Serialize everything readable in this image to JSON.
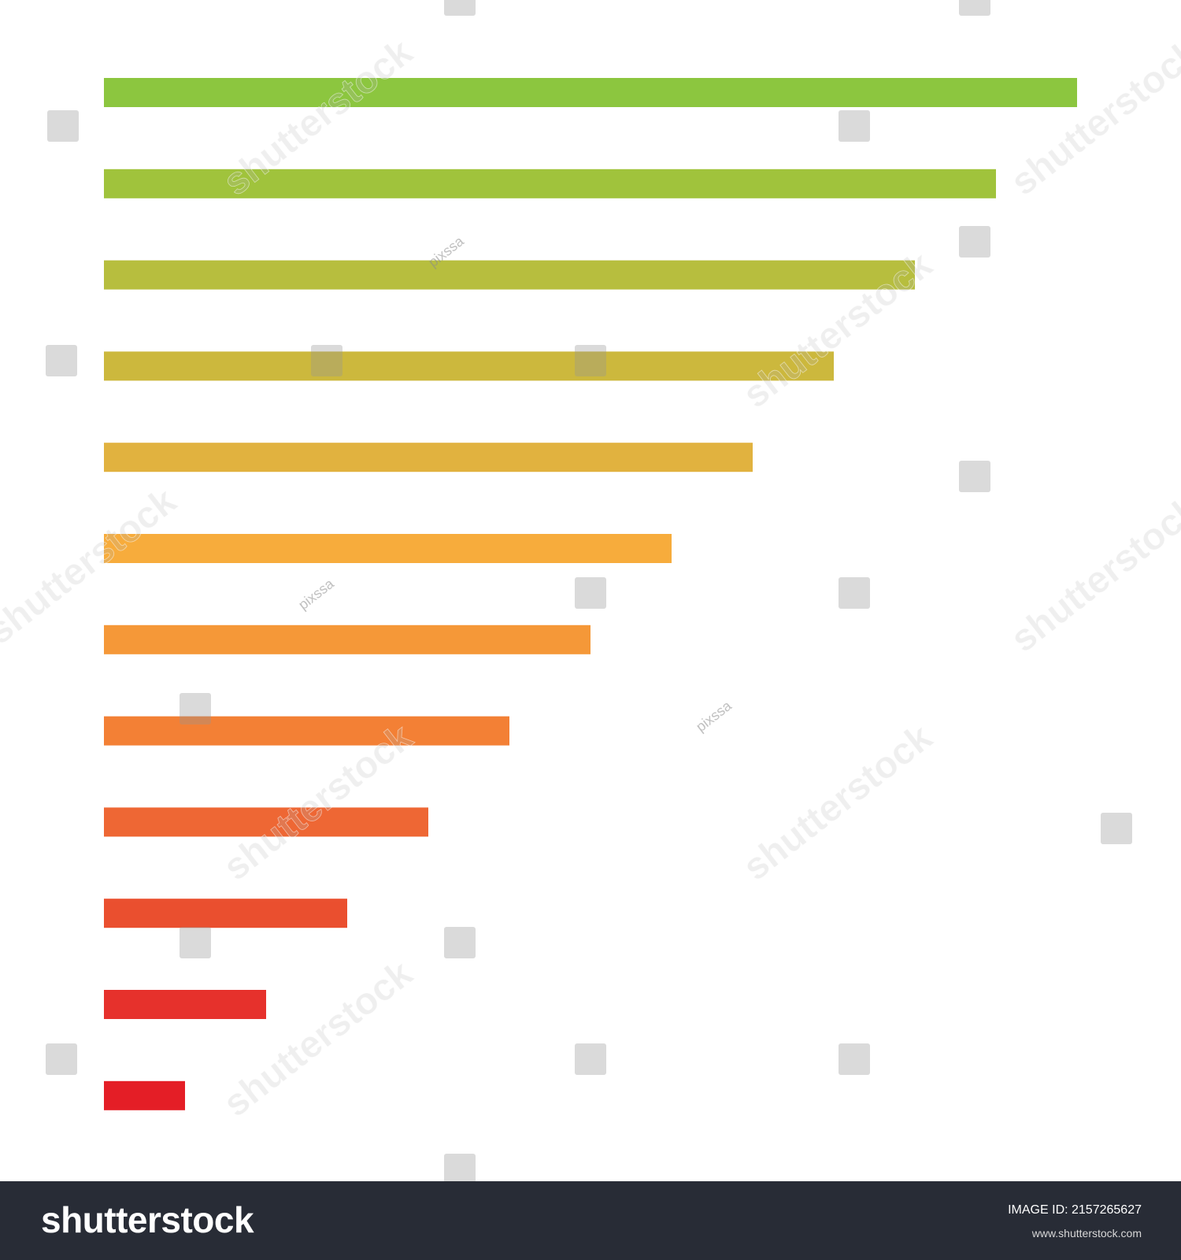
{
  "chart_data": {
    "type": "bar",
    "orientation": "horizontal",
    "categories": [
      "",
      "",
      "",
      "",
      "",
      "",
      "",
      "",
      "",
      "",
      "",
      ""
    ],
    "values": [
      12,
      11,
      10,
      9,
      8,
      7,
      6,
      5,
      4,
      3,
      2,
      1
    ],
    "colors": [
      "#8cc63f",
      "#a0c33c",
      "#b7be3e",
      "#ccb83d",
      "#e1b23f",
      "#f7ac3c",
      "#f59838",
      "#f38035",
      "#ee6734",
      "#ea4f2f",
      "#e6312c",
      "#e41e26"
    ],
    "xlim": [
      0,
      12.5
    ],
    "title": "",
    "xlabel": "",
    "ylabel": "",
    "grid": false,
    "legend": "none"
  },
  "watermark": {
    "brand_text": "shutterstock",
    "contributor_text": "pixssa"
  },
  "footer": {
    "logo_text": "shutterstock",
    "image_id": "IMAGE ID: 2157265627",
    "site_url": "www.shutterstock.com"
  }
}
